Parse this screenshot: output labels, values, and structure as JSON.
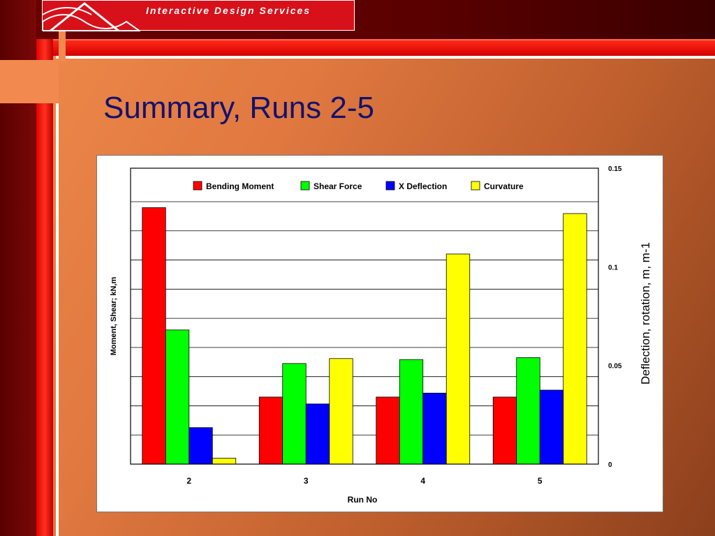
{
  "header": {
    "banner_title": "Interactive   Design   Services"
  },
  "slide": {
    "title": "Summary, Runs 2-5"
  },
  "colors": {
    "accent_red": "#d8101a",
    "title_blue": "#12126e"
  },
  "chart_data": {
    "type": "bar",
    "title": "",
    "xlabel": "Run No",
    "ylabel": "Moment, Shear; kN,m",
    "y2label": "Deflection, rotation, m, m-1",
    "categories": [
      "2",
      "3",
      "4",
      "5"
    ],
    "y2lim": [
      0,
      0.15
    ],
    "y2ticks": [
      "0",
      "0.05",
      "0.1",
      "0.15"
    ],
    "grid": true,
    "legend": "top",
    "series": [
      {
        "name": "Bending Moment",
        "color": "#ff0000",
        "values": [
          0.13,
          0.034,
          0.034,
          0.034
        ]
      },
      {
        "name": "Shear Force",
        "color": "#00ff00",
        "values": [
          0.068,
          0.051,
          0.053,
          0.054
        ]
      },
      {
        "name": "X Deflection",
        "color": "#0000ff",
        "values": [
          0.0185,
          0.0305,
          0.036,
          0.0375
        ]
      },
      {
        "name": "Curvature",
        "color": "#ffff00",
        "values": [
          0.003,
          0.0535,
          0.1065,
          0.127
        ]
      }
    ]
  }
}
